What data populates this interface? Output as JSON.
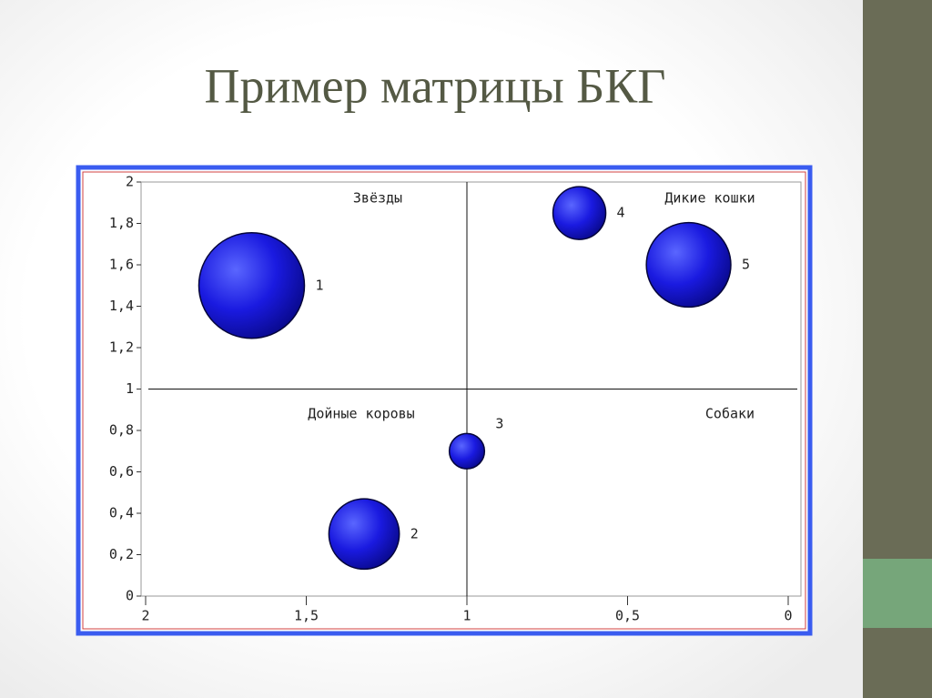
{
  "chart_data": {
    "type": "bubble",
    "title": "Пример матрицы БКГ",
    "x": [
      1.67,
      1.32,
      1.0,
      0.65,
      0.31
    ],
    "values": [
      1.5,
      0.3,
      0.7,
      1.85,
      1.6
    ],
    "sizes": [
      3.0,
      2.0,
      1.0,
      1.5,
      2.4
    ],
    "labels": [
      "1",
      "2",
      "3",
      "4",
      "5"
    ],
    "color": "#1a1ae0",
    "xlim": [
      2,
      0
    ],
    "xticks": [
      2,
      {
        "value": 1.5,
        "label": "1,5"
      },
      1,
      {
        "value": 0.5,
        "label": "0,5"
      },
      0
    ],
    "ylim": [
      0,
      2
    ],
    "yticks": [
      0,
      {
        "value": 0.2,
        "label": "0,2"
      },
      {
        "value": 0.4,
        "label": "0,4"
      },
      {
        "value": 0.6,
        "label": "0,6"
      },
      {
        "value": 0.8,
        "label": "0,8"
      },
      1,
      {
        "value": 1.2,
        "label": "1,2"
      },
      {
        "value": 1.4,
        "label": "1,4"
      },
      {
        "value": 1.6,
        "label": "1,6"
      },
      {
        "value": 1.8,
        "label": "1,8"
      },
      2
    ],
    "quadrant_lines": {
      "x": 1,
      "y": 1
    },
    "annotations": [
      "Звёзды",
      "Дикие кошки",
      "Дойные коровы",
      "Собаки"
    ]
  }
}
